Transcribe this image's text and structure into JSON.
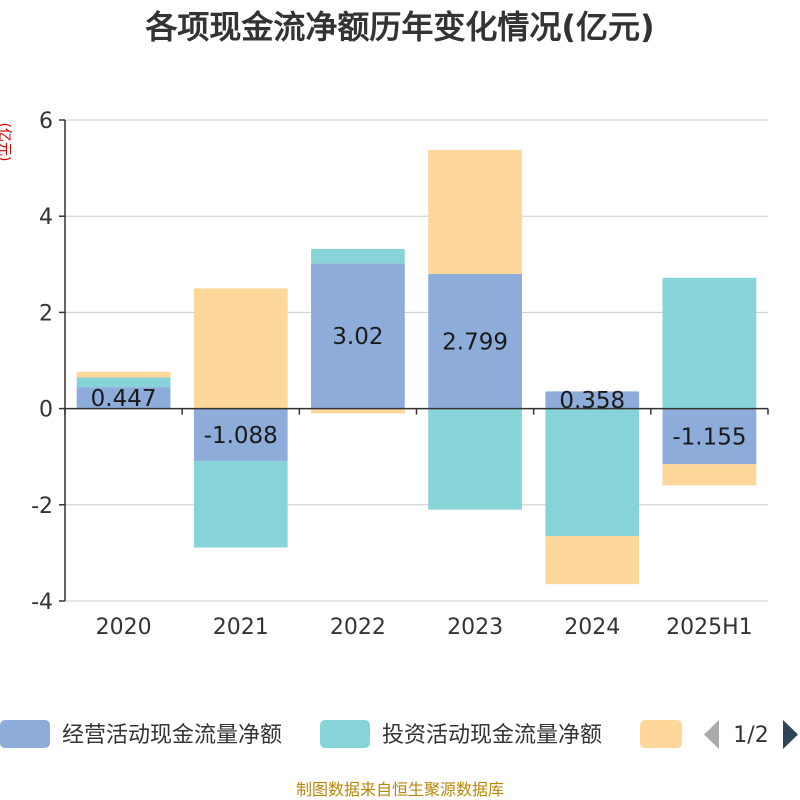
{
  "source_text": "制图数据来自恒生聚源数据库",
  "legend_page": "1/2",
  "chart_data": {
    "type": "bar",
    "stacked": true,
    "title": "各项现金流净额历年变化情况(亿元)",
    "unit_label": "(亿元)",
    "categories": [
      "2020",
      "2021",
      "2022",
      "2023",
      "2024",
      "2025H1"
    ],
    "ylim": [
      -4,
      6
    ],
    "yticks": [
      -4,
      -2,
      0,
      2,
      4,
      6
    ],
    "grid": true,
    "legend_position": "bottom",
    "series": [
      {
        "name": "经营活动现金流量净额",
        "color": "#8eacd9",
        "values": [
          0.447,
          -1.088,
          3.02,
          2.799,
          0.358,
          -1.155
        ],
        "labels": [
          "0.447",
          "-1.088",
          "3.02",
          "2.799",
          "0.358",
          "-1.155"
        ]
      },
      {
        "name": "投资活动现金流量净额",
        "color": "#86d4d8",
        "values": [
          0.2,
          -1.8,
          0.3,
          -2.1,
          -2.65,
          2.72
        ]
      },
      {
        "name": "",
        "color": "#fdd89a",
        "values": [
          0.12,
          2.5,
          -0.1,
          2.58,
          -1.0,
          -0.44
        ]
      }
    ]
  }
}
